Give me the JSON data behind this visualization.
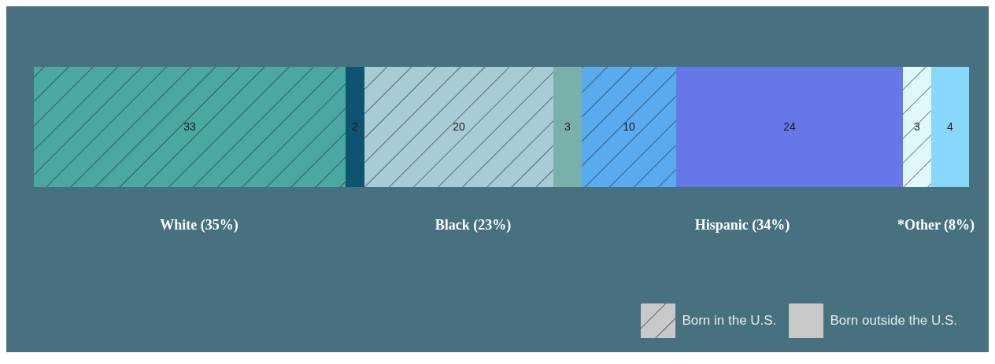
{
  "chart_data": {
    "type": "bar",
    "orientation": "horizontal",
    "stacked": true,
    "data_labels": true,
    "categories": [
      null
    ],
    "series": [
      {
        "color": "#4aa8a0",
        "values": [
          33
        ]
      },
      {
        "color": "#0e5470",
        "values": [
          2
        ]
      },
      {
        "color": "#a8ccd6",
        "values": [
          20
        ]
      },
      {
        "color": "#7ab0ac",
        "values": [
          3
        ]
      },
      {
        "color": "#5aaaf0",
        "values": [
          10
        ]
      },
      {
        "color": "#6678e8",
        "values": [
          24
        ]
      },
      {
        "color": "#e0f8fc",
        "values": [
          3
        ]
      },
      {
        "color": "#88d8fc",
        "values": [
          4
        ]
      }
    ],
    "annotations": [
      "White (35%)",
      "Black (23%)",
      "Hispanic (34%)",
      "*Other (8%)",
      "Born in the U.S.",
      "Born outside the U.S."
    ]
  }
}
